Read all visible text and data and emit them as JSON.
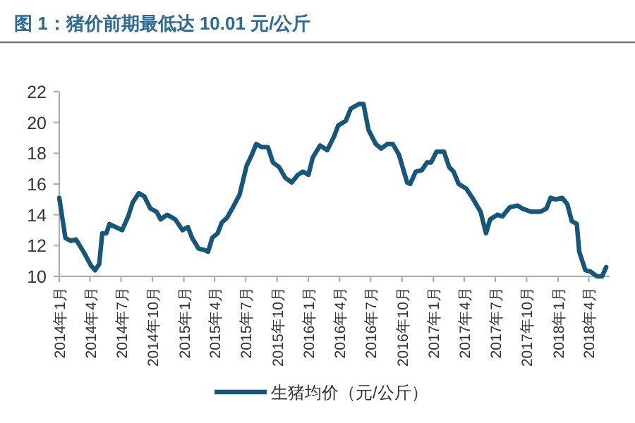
{
  "chart_data": {
    "type": "line",
    "title": "图 1：猪价前期最低达 10.01 元/公斤",
    "x": [
      "2014-01-01",
      "2014-01-19",
      "2014-02-04",
      "2014-02-19",
      "2014-03-13",
      "2014-04-04",
      "2014-04-16",
      "2014-04-28",
      "2014-05-07",
      "2014-05-19",
      "2014-05-28",
      "2014-06-25",
      "2014-07-04",
      "2014-07-22",
      "2014-08-04",
      "2014-08-22",
      "2014-09-07",
      "2014-09-25",
      "2014-10-13",
      "2014-10-25",
      "2014-11-13",
      "2014-12-07",
      "2014-12-28",
      "2015-01-13",
      "2015-01-25",
      "2015-02-13",
      "2015-03-04",
      "2015-03-13",
      "2015-03-25",
      "2015-04-10",
      "2015-04-22",
      "2015-05-07",
      "2015-05-25",
      "2015-06-13",
      "2015-07-04",
      "2015-07-19",
      "2015-08-01",
      "2015-08-16",
      "2015-09-04",
      "2015-09-19",
      "2015-10-07",
      "2015-10-25",
      "2015-11-13",
      "2015-12-01",
      "2015-12-16",
      "2016-01-01",
      "2016-01-13",
      "2016-02-04",
      "2016-02-25",
      "2016-03-16",
      "2016-03-28",
      "2016-04-19",
      "2016-05-04",
      "2016-05-28",
      "2016-06-10",
      "2016-06-25",
      "2016-07-16",
      "2016-08-01",
      "2016-08-19",
      "2016-09-04",
      "2016-09-22",
      "2016-10-16",
      "2016-10-25",
      "2016-11-10",
      "2016-11-28",
      "2016-12-13",
      "2016-12-25",
      "2017-01-10",
      "2017-02-01",
      "2017-02-16",
      "2017-03-01",
      "2017-03-16",
      "2017-04-07",
      "2017-04-28",
      "2017-05-19",
      "2017-06-04",
      "2017-06-16",
      "2017-07-07",
      "2017-07-22",
      "2017-08-13",
      "2017-09-04",
      "2017-09-19",
      "2017-10-13",
      "2017-11-10",
      "2017-11-28",
      "2017-12-10",
      "2017-12-25",
      "2018-01-13",
      "2018-01-28",
      "2018-02-10",
      "2018-02-25",
      "2018-03-04",
      "2018-03-22",
      "2018-04-07",
      "2018-04-25",
      "2018-05-10",
      "2018-05-22"
    ],
    "series": [
      {
        "name": "生猪均价（元/公斤）",
        "color": "#17557a",
        "values": [
          15.1,
          12.5,
          12.3,
          12.4,
          11.6,
          10.7,
          10.4,
          10.8,
          12.8,
          12.8,
          13.4,
          13.1,
          13.0,
          13.9,
          14.8,
          15.4,
          15.2,
          14.4,
          14.2,
          13.7,
          14.0,
          13.7,
          13.0,
          13.2,
          12.5,
          11.8,
          11.7,
          11.6,
          12.5,
          12.8,
          13.5,
          13.8,
          14.5,
          15.3,
          17.2,
          17.9,
          18.6,
          18.4,
          18.4,
          17.4,
          17.1,
          16.4,
          16.1,
          16.6,
          16.8,
          16.6,
          17.7,
          18.5,
          18.2,
          19.1,
          19.8,
          20.1,
          20.9,
          21.2,
          21.2,
          19.5,
          18.6,
          18.3,
          18.6,
          18.6,
          17.9,
          16.1,
          16.0,
          16.8,
          16.9,
          17.4,
          17.4,
          18.1,
          18.1,
          17.1,
          16.8,
          16.0,
          15.7,
          15.0,
          14.2,
          12.8,
          13.7,
          14.0,
          13.9,
          14.5,
          14.6,
          14.4,
          14.2,
          14.2,
          14.4,
          15.1,
          15.0,
          15.1,
          14.7,
          13.6,
          13.4,
          11.6,
          10.4,
          10.3,
          10.0,
          10.0,
          10.6
        ]
      }
    ],
    "xlim": [
      "2014-01-01",
      "2018-06-01"
    ],
    "xticks": [
      {
        "value": "2014-01-01",
        "label": "2014年1月"
      },
      {
        "value": "2014-04-01",
        "label": "2014年4月"
      },
      {
        "value": "2014-07-01",
        "label": "2014年7月"
      },
      {
        "value": "2014-10-01",
        "label": "2014年10月"
      },
      {
        "value": "2015-01-01",
        "label": "2015年1月"
      },
      {
        "value": "2015-04-01",
        "label": "2015年4月"
      },
      {
        "value": "2015-07-01",
        "label": "2015年7月"
      },
      {
        "value": "2015-10-01",
        "label": "2015年10月"
      },
      {
        "value": "2016-01-01",
        "label": "2016年1月"
      },
      {
        "value": "2016-04-01",
        "label": "2016年4月"
      },
      {
        "value": "2016-07-01",
        "label": "2016年7月"
      },
      {
        "value": "2016-10-01",
        "label": "2016年10月"
      },
      {
        "value": "2017-01-01",
        "label": "2017年1月"
      },
      {
        "value": "2017-04-01",
        "label": "2017年4月"
      },
      {
        "value": "2017-07-01",
        "label": "2017年7月"
      },
      {
        "value": "2017-10-01",
        "label": "2017年10月"
      },
      {
        "value": "2018-01-01",
        "label": "2018年1月"
      },
      {
        "value": "2018-04-01",
        "label": "2018年4月"
      }
    ],
    "ylim": [
      10,
      22
    ],
    "yticks": [
      10,
      12,
      14,
      16,
      18,
      20,
      22
    ],
    "grid": false,
    "legend": "bottom",
    "marker": "none",
    "line_style": "solid"
  }
}
